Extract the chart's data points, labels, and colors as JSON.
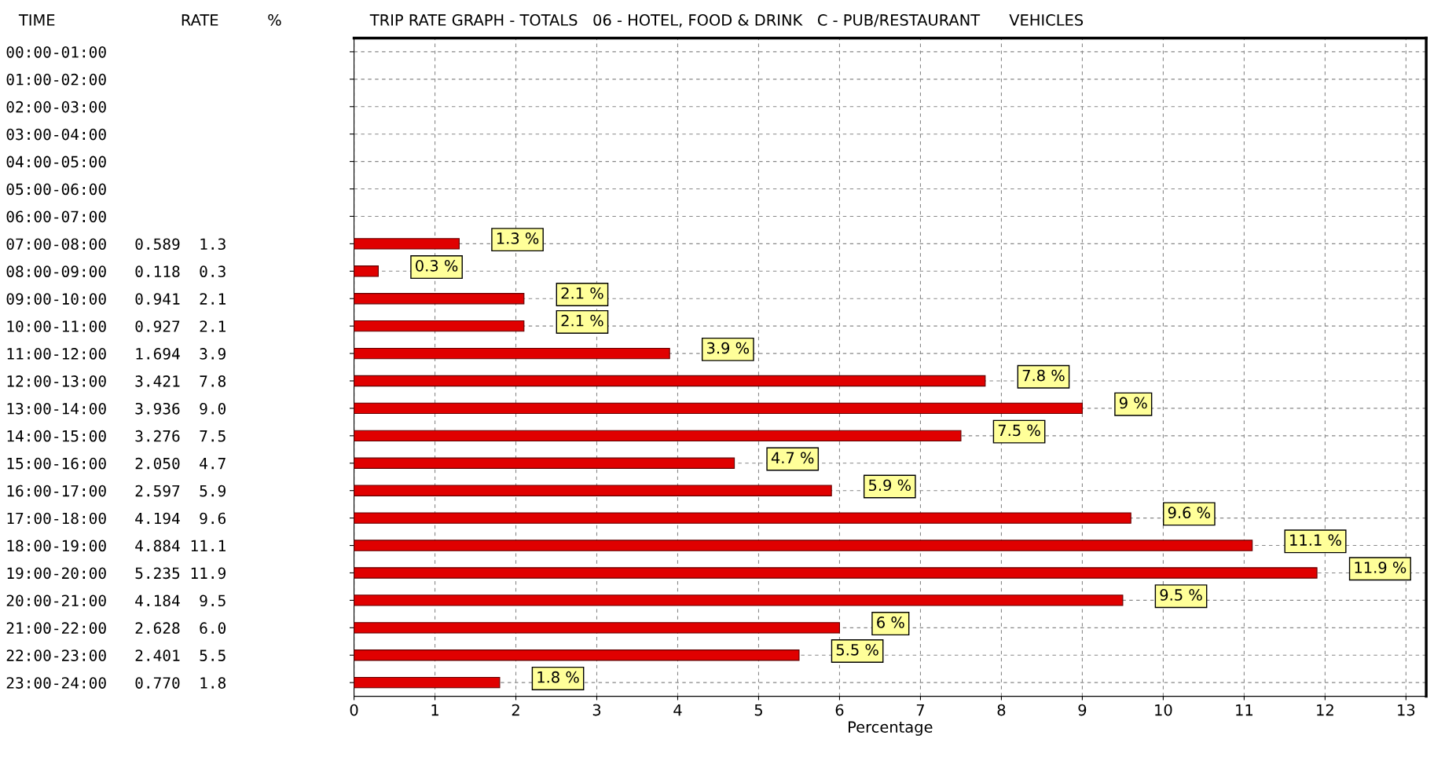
{
  "chart_data": {
    "type": "bar",
    "orientation": "horizontal",
    "title": "TRIP RATE GRAPH - TOTALS   06 - HOTEL, FOOD & DRINK   C - PUB/RESTAURANT      VEHICLES",
    "xlabel": "Percentage",
    "annotations": [
      "TIME",
      "RATE",
      "%"
    ],
    "categories": [
      "00:00-01:00",
      "01:00-02:00",
      "02:00-03:00",
      "03:00-04:00",
      "04:00-05:00",
      "05:00-06:00",
      "06:00-07:00",
      "07:00-08:00   0.589  1.3",
      "08:00-09:00   0.118  0.3",
      "09:00-10:00   0.941  2.1",
      "10:00-11:00   0.927  2.1",
      "11:00-12:00   1.694  3.9",
      "12:00-13:00   3.421  7.8",
      "13:00-14:00   3.936  9.0",
      "14:00-15:00   3.276  7.5",
      "15:00-16:00   2.050  4.7",
      "16:00-17:00   2.597  5.9",
      "17:00-18:00   4.194  9.6",
      "18:00-19:00   4.884 11.1",
      "19:00-20:00   5.235 11.9",
      "20:00-21:00   4.184  9.5",
      "21:00-22:00   2.628  6.0",
      "22:00-23:00   2.401  5.5",
      "23:00-24:00   0.770  1.8"
    ],
    "values": [
      null,
      null,
      null,
      null,
      null,
      null,
      null,
      1.3,
      0.3,
      2.1,
      2.1,
      3.9,
      7.8,
      9.0,
      7.5,
      4.7,
      5.9,
      9.6,
      11.1,
      11.9,
      9.5,
      6.0,
      5.5,
      1.8
    ],
    "value_labels": [
      null,
      null,
      null,
      null,
      null,
      null,
      null,
      "1.3 %",
      "0.3 %",
      "2.1 %",
      "2.1 %",
      "3.9 %",
      "7.8 %",
      "9 %",
      "7.5 %",
      "4.7 %",
      "5.9 %",
      "9.6 %",
      "11.1 %",
      "11.9 %",
      "9.5 %",
      "6 %",
      "5.5 %",
      "1.8 %"
    ],
    "color": "#e00000",
    "xlim": [
      0,
      13.25
    ],
    "xticks": [
      0,
      1,
      2,
      3,
      4,
      5,
      6,
      7,
      8,
      9,
      10,
      11,
      12,
      13
    ],
    "grid": true,
    "legend": false
  }
}
